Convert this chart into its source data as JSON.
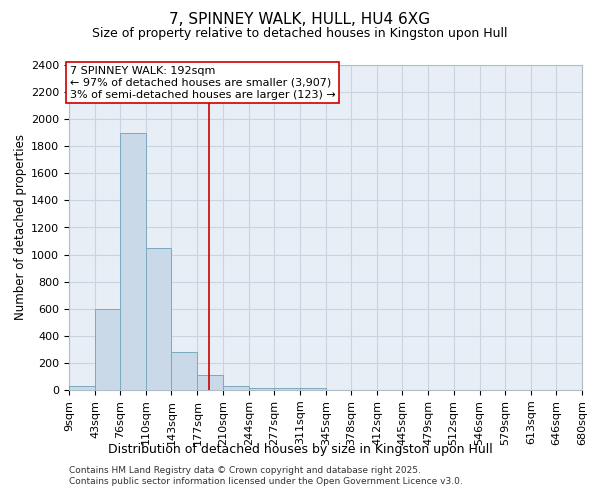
{
  "title": "7, SPINNEY WALK, HULL, HU4 6XG",
  "subtitle": "Size of property relative to detached houses in Kingston upon Hull",
  "xlabel": "Distribution of detached houses by size in Kingston upon Hull",
  "ylabel": "Number of detached properties",
  "property_label": "7 SPINNEY WALK: 192sqm",
  "annotation_line1": "← 97% of detached houses are smaller (3,907)",
  "annotation_line2": "3% of semi-detached houses are larger (123) →",
  "footnote1": "Contains HM Land Registry data © Crown copyright and database right 2025.",
  "footnote2": "Contains public sector information licensed under the Open Government Licence v3.0.",
  "bin_edges": [
    9,
    43,
    76,
    110,
    143,
    177,
    210,
    244,
    277,
    311,
    345,
    378,
    412,
    445,
    479,
    512,
    546,
    579,
    613,
    646,
    680
  ],
  "bar_heights": [
    30,
    600,
    1900,
    1050,
    280,
    110,
    30,
    15,
    15,
    15,
    0,
    0,
    0,
    0,
    0,
    0,
    0,
    0,
    0,
    0
  ],
  "bar_color": "#c9d9e8",
  "bar_edge_color": "#7aaabf",
  "vline_color": "#cc0000",
  "vline_x": 192,
  "ylim": [
    0,
    2400
  ],
  "yticks": [
    0,
    200,
    400,
    600,
    800,
    1000,
    1200,
    1400,
    1600,
    1800,
    2000,
    2200,
    2400
  ],
  "grid_color": "#c8d4e0",
  "bg_color": "#e8eef5",
  "title_fontsize": 11,
  "subtitle_fontsize": 9,
  "xlabel_fontsize": 9,
  "ylabel_fontsize": 8.5,
  "tick_fontsize": 8,
  "annotation_fontsize": 8,
  "footnote_fontsize": 6.5
}
